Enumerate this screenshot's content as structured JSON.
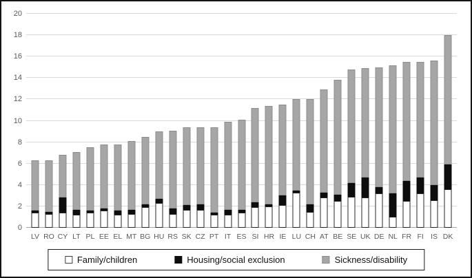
{
  "chart_data": {
    "type": "bar",
    "subtype": "stacked-vertical",
    "title": "",
    "xlabel": "",
    "ylabel": "",
    "ylim": [
      0,
      20
    ],
    "ytick_step": 2,
    "yticks": [
      0,
      2,
      4,
      6,
      8,
      10,
      12,
      14,
      16,
      18,
      20
    ],
    "grid": "horizontal",
    "legend_position": "bottom-center",
    "categories": [
      "LV",
      "RO",
      "CY",
      "LT",
      "PL",
      "EE",
      "EL",
      "MT",
      "BG",
      "HU",
      "RS",
      "SK",
      "CZ",
      "PT",
      "IT",
      "ES",
      "SI",
      "HR",
      "IE",
      "LU",
      "CH",
      "AT",
      "BE",
      "SE",
      "UK",
      "DE",
      "NL",
      "FR",
      "FI",
      "IS",
      "DK"
    ],
    "series": [
      {
        "name": "Family/children",
        "color": "#ffffff",
        "values": [
          1.4,
          1.3,
          1.4,
          1.2,
          1.4,
          1.6,
          1.2,
          1.3,
          1.9,
          2.3,
          1.3,
          1.7,
          1.7,
          1.2,
          1.2,
          1.4,
          1.9,
          2.0,
          2.1,
          3.3,
          1.5,
          2.8,
          2.5,
          2.9,
          2.8,
          3.2,
          1.0,
          2.5,
          3.2,
          2.6,
          3.6
        ]
      },
      {
        "name": "Housing/social exclusion",
        "color": "#0d0d0d",
        "values": [
          0.2,
          0.2,
          1.4,
          0.5,
          0.2,
          0.2,
          0.4,
          0.4,
          0.3,
          0.4,
          0.5,
          0.4,
          0.5,
          0.2,
          0.5,
          0.3,
          0.5,
          0.2,
          0.9,
          0.2,
          0.7,
          0.5,
          0.6,
          1.3,
          1.9,
          0.6,
          2.2,
          1.9,
          1.5,
          1.4,
          2.3
        ]
      },
      {
        "name": "Sickness/disability",
        "color": "#a6a6a6",
        "values": [
          4.7,
          4.8,
          4.0,
          5.4,
          5.9,
          6.0,
          6.2,
          6.4,
          6.3,
          6.3,
          7.3,
          7.3,
          7.2,
          8.0,
          8.2,
          8.4,
          8.8,
          9.2,
          8.5,
          8.5,
          9.8,
          9.6,
          10.7,
          10.6,
          10.2,
          11.2,
          12.0,
          11.1,
          10.8,
          11.6,
          12.1
        ]
      }
    ],
    "stack_totals": [
      6.3,
      6.3,
      6.8,
      7.1,
      7.5,
      7.8,
      7.8,
      8.1,
      8.5,
      9.0,
      9.1,
      9.4,
      9.4,
      9.4,
      9.9,
      10.1,
      11.2,
      11.4,
      11.5,
      12.0,
      12.0,
      12.9,
      13.8,
      14.8,
      14.9,
      15.0,
      15.2,
      15.5,
      15.5,
      15.6,
      18.0
    ]
  },
  "colors": {
    "frame_border": "#141414",
    "gridline": "#d9d9d9",
    "axis_line": "#a6a6a6",
    "tick_text": "#595959",
    "legend_text": "#111111"
  }
}
